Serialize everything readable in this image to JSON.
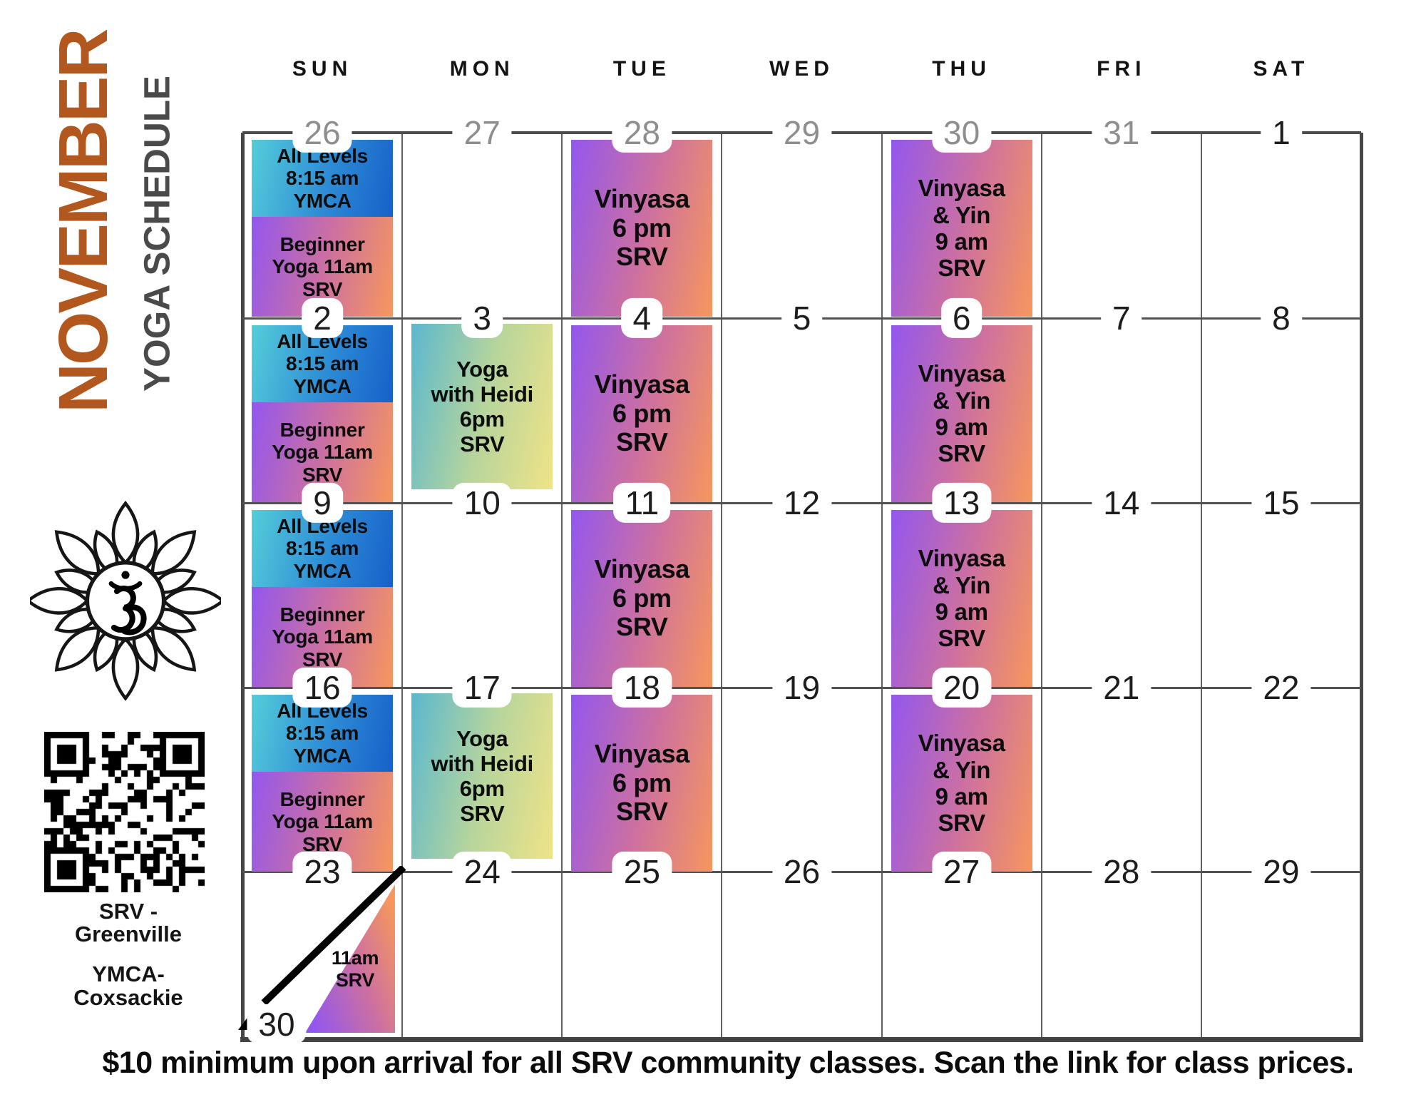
{
  "title": {
    "month": "NOVEMBER",
    "subtitle": "YOGA SCHEDULE"
  },
  "sidebar": {
    "om_icon": "om-lotus-icon",
    "qr_icon": "qr-code",
    "locations": [
      {
        "lines": [
          "SRV -",
          "Greenville"
        ]
      },
      {
        "lines": [
          "YMCA-",
          "Coxsackie"
        ]
      }
    ]
  },
  "footer": {
    "note": "$10 minimum upon arrival for all SRV community classes. Scan the link for class prices."
  },
  "colors": {
    "accent_orange": "#b2571e",
    "subtitle_gray": "#4a4a4a",
    "grid_line": "#555555",
    "date_dark": "#1d1d1d",
    "date_muted": "#8e8e8e"
  },
  "calendar": {
    "weekdays": [
      "SUN",
      "MON",
      "TUE",
      "WED",
      "THU",
      "FRI",
      "SAT"
    ],
    "event_types": {
      "ymca": {
        "lines": [
          "All Levels",
          "8:15 am",
          "YMCA"
        ],
        "gradient": [
          "#55cdd9",
          "#2e8ed6",
          "#1660c9"
        ],
        "font_size": 28
      },
      "beginner": {
        "lines": [
          "Beginner",
          "Yoga 11am",
          "SRV"
        ],
        "gradient": [
          "#9257ee",
          "#cd70a0",
          "#f6975d"
        ],
        "font_size": 28
      },
      "heidi": {
        "lines": [
          "Yoga",
          "with Heidi",
          "6pm",
          "SRV"
        ],
        "gradient": [
          "#5ab8cf",
          "#b8d59c",
          "#efe387"
        ],
        "font_size": 31
      },
      "vinyasa": {
        "lines": [
          "Vinyasa",
          "6 pm",
          "SRV"
        ],
        "gradient": [
          "#9257ee",
          "#cd70a0",
          "#f6975d"
        ],
        "font_size": 36
      },
      "vinyin": {
        "lines": [
          "Vinyasa",
          "& Yin",
          "9 am",
          "SRV"
        ],
        "gradient": [
          "#9257ee",
          "#cd70a0",
          "#f6975d"
        ],
        "font_size": 33
      },
      "sunday30": {
        "lines": [
          "11am",
          "SRV"
        ],
        "gradient": [
          "#9257ee",
          "#cd70a0",
          "#f6975d"
        ],
        "font_size": 27
      }
    },
    "weeks": [
      {
        "dates": [
          "26",
          "27",
          "28",
          "29",
          "30",
          "31",
          "1"
        ],
        "muted_cols": [
          0,
          1,
          2,
          3,
          4,
          5
        ],
        "events": [
          {
            "col": 0,
            "type": "ymca",
            "slot": "a"
          },
          {
            "col": 0,
            "type": "beginner",
            "slot": "b"
          },
          {
            "col": 2,
            "type": "vinyasa",
            "slot": "full"
          },
          {
            "col": 4,
            "type": "vinyin",
            "slot": "full"
          }
        ]
      },
      {
        "dates": [
          "2",
          "3",
          "4",
          "5",
          "6",
          "7",
          "8"
        ],
        "muted_cols": [],
        "events": [
          {
            "col": 0,
            "type": "ymca",
            "slot": "a"
          },
          {
            "col": 0,
            "type": "beginner",
            "slot": "b"
          },
          {
            "col": 1,
            "type": "heidi",
            "slot": "mon"
          },
          {
            "col": 2,
            "type": "vinyasa",
            "slot": "full"
          },
          {
            "col": 4,
            "type": "vinyin",
            "slot": "full"
          }
        ]
      },
      {
        "dates": [
          "9",
          "10",
          "11",
          "12",
          "13",
          "14",
          "15"
        ],
        "muted_cols": [],
        "events": [
          {
            "col": 0,
            "type": "ymca",
            "slot": "a"
          },
          {
            "col": 0,
            "type": "beginner",
            "slot": "b"
          },
          {
            "col": 2,
            "type": "vinyasa",
            "slot": "full"
          },
          {
            "col": 4,
            "type": "vinyin",
            "slot": "full"
          }
        ]
      },
      {
        "dates": [
          "16",
          "17",
          "18",
          "19",
          "20",
          "21",
          "22"
        ],
        "muted_cols": [],
        "events": [
          {
            "col": 0,
            "type": "ymca",
            "slot": "a"
          },
          {
            "col": 0,
            "type": "beginner",
            "slot": "b"
          },
          {
            "col": 1,
            "type": "heidi",
            "slot": "mon"
          },
          {
            "col": 2,
            "type": "vinyasa",
            "slot": "full"
          },
          {
            "col": 4,
            "type": "vinyin",
            "slot": "full"
          }
        ]
      },
      {
        "dates": [
          "23",
          "24",
          "25",
          "26",
          "27",
          "28",
          "29"
        ],
        "muted_cols": [],
        "events": [],
        "split": {
          "col": 0,
          "back_date": "30",
          "type": "sunday30"
        }
      }
    ]
  }
}
